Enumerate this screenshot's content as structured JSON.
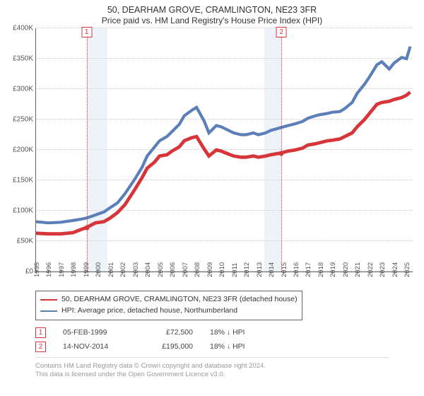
{
  "title": "50, DEARHAM GROVE, CRAMLINGTON, NE23 3FR",
  "subtitle": "Price paid vs. HM Land Registry's House Price Index (HPI)",
  "chart": {
    "type": "line",
    "background": "#ffffff",
    "grid_color": "#cccccc",
    "axis_color": "#666666",
    "shade_color": "#eef3f9",
    "marker_color": "#d6363a",
    "point_fill": "#d6363a",
    "label_color": "#555555",
    "label_fontsize": 10,
    "y": {
      "min": 0,
      "max": 400000,
      "step": 50000,
      "labels": [
        "£0",
        "£50K",
        "£100K",
        "£150K",
        "£200K",
        "£250K",
        "£300K",
        "£350K",
        "£400K"
      ]
    },
    "x": {
      "min": 1995,
      "max": 2025.5,
      "ticks": [
        1995,
        1996,
        1997,
        1998,
        1999,
        2000,
        2001,
        2002,
        2003,
        2004,
        2005,
        2006,
        2007,
        2008,
        2009,
        2010,
        2011,
        2012,
        2013,
        2014,
        2015,
        2016,
        2017,
        2018,
        2019,
        2020,
        2021,
        2022,
        2023,
        2024,
        2025
      ]
    },
    "markers": [
      {
        "num": "1",
        "x": 1999.1
      },
      {
        "num": "2",
        "x": 2014.87
      }
    ],
    "shaded_ranges": [
      {
        "from": 1999.1,
        "to": 2000.8
      },
      {
        "from": 2013.5,
        "to": 2014.87
      }
    ],
    "points": [
      {
        "x": 1999.1,
        "y": 72500
      },
      {
        "x": 2014.87,
        "y": 195000
      }
    ],
    "series": [
      {
        "name": "50, DEARHAM GROVE, CRAMLINGTON, NE23 3FR (detached house)",
        "color": "#d6363a",
        "width": 1.6,
        "data": [
          [
            1995,
            63000
          ],
          [
            1996,
            62000
          ],
          [
            1997,
            62000
          ],
          [
            1998,
            64000
          ],
          [
            1998.5,
            68000
          ],
          [
            1999.1,
            72500
          ],
          [
            1999.8,
            80000
          ],
          [
            2000.5,
            82000
          ],
          [
            2001,
            88000
          ],
          [
            2001.6,
            97000
          ],
          [
            2002.2,
            110000
          ],
          [
            2003,
            135000
          ],
          [
            2003.6,
            155000
          ],
          [
            2004,
            170000
          ],
          [
            2004.6,
            180000
          ],
          [
            2005,
            190000
          ],
          [
            2005.6,
            192000
          ],
          [
            2006,
            198000
          ],
          [
            2006.6,
            205000
          ],
          [
            2007,
            215000
          ],
          [
            2007.6,
            220000
          ],
          [
            2008,
            222000
          ],
          [
            2008.6,
            202000
          ],
          [
            2009,
            190000
          ],
          [
            2009.6,
            200000
          ],
          [
            2010,
            198000
          ],
          [
            2010.6,
            193000
          ],
          [
            2011,
            190000
          ],
          [
            2011.6,
            188000
          ],
          [
            2012,
            188000
          ],
          [
            2012.6,
            190000
          ],
          [
            2013,
            188000
          ],
          [
            2013.6,
            190000
          ],
          [
            2014,
            192000
          ],
          [
            2014.87,
            195000
          ],
          [
            2015.4,
            198000
          ],
          [
            2016,
            200000
          ],
          [
            2016.6,
            203000
          ],
          [
            2017,
            208000
          ],
          [
            2017.6,
            210000
          ],
          [
            2018,
            212000
          ],
          [
            2018.6,
            215000
          ],
          [
            2019,
            216000
          ],
          [
            2019.6,
            218000
          ],
          [
            2020,
            222000
          ],
          [
            2020.6,
            228000
          ],
          [
            2021,
            238000
          ],
          [
            2021.6,
            250000
          ],
          [
            2022,
            260000
          ],
          [
            2022.6,
            275000
          ],
          [
            2023,
            278000
          ],
          [
            2023.6,
            280000
          ],
          [
            2024,
            283000
          ],
          [
            2024.6,
            286000
          ],
          [
            2025,
            290000
          ],
          [
            2025.3,
            295000
          ]
        ]
      },
      {
        "name": "HPI: Average price, detached house, Northumberland",
        "color": "#5b7fb8",
        "width": 1.4,
        "data": [
          [
            1995,
            82000
          ],
          [
            1996,
            80000
          ],
          [
            1997,
            81000
          ],
          [
            1998,
            84000
          ],
          [
            1998.6,
            86000
          ],
          [
            1999.1,
            88000
          ],
          [
            1999.8,
            93000
          ],
          [
            2000.5,
            98000
          ],
          [
            2001,
            105000
          ],
          [
            2001.6,
            113000
          ],
          [
            2002.2,
            128000
          ],
          [
            2003,
            152000
          ],
          [
            2003.6,
            172000
          ],
          [
            2004,
            190000
          ],
          [
            2004.6,
            205000
          ],
          [
            2005,
            215000
          ],
          [
            2005.6,
            222000
          ],
          [
            2006,
            230000
          ],
          [
            2006.6,
            242000
          ],
          [
            2007,
            256000
          ],
          [
            2007.6,
            265000
          ],
          [
            2008,
            270000
          ],
          [
            2008.6,
            248000
          ],
          [
            2009,
            228000
          ],
          [
            2009.6,
            240000
          ],
          [
            2010,
            238000
          ],
          [
            2010.6,
            232000
          ],
          [
            2011,
            228000
          ],
          [
            2011.6,
            225000
          ],
          [
            2012,
            225000
          ],
          [
            2012.6,
            228000
          ],
          [
            2013,
            225000
          ],
          [
            2013.6,
            228000
          ],
          [
            2014,
            232000
          ],
          [
            2014.87,
            237000
          ],
          [
            2015.4,
            240000
          ],
          [
            2016,
            243000
          ],
          [
            2016.6,
            247000
          ],
          [
            2017,
            252000
          ],
          [
            2017.6,
            256000
          ],
          [
            2018,
            258000
          ],
          [
            2018.6,
            260000
          ],
          [
            2019,
            262000
          ],
          [
            2019.6,
            263000
          ],
          [
            2020,
            268000
          ],
          [
            2020.6,
            278000
          ],
          [
            2021,
            293000
          ],
          [
            2021.6,
            308000
          ],
          [
            2022,
            320000
          ],
          [
            2022.6,
            340000
          ],
          [
            2023,
            345000
          ],
          [
            2023.6,
            333000
          ],
          [
            2024,
            343000
          ],
          [
            2024.6,
            352000
          ],
          [
            2025,
            350000
          ],
          [
            2025.3,
            370000
          ]
        ]
      }
    ]
  },
  "legend": {
    "series1": "50, DEARHAM GROVE, CRAMLINGTON, NE23 3FR (detached house)",
    "series2": "HPI: Average price, detached house, Northumberland"
  },
  "table": {
    "rows": [
      {
        "num": "1",
        "date": "05-FEB-1999",
        "price": "£72,500",
        "pct": "18% ↓ HPI"
      },
      {
        "num": "2",
        "date": "14-NOV-2014",
        "price": "£195,000",
        "pct": "18% ↓ HPI"
      }
    ]
  },
  "footer": {
    "line1": "Contains HM Land Registry data © Crown copyright and database right 2024.",
    "line2": "This data is licensed under the Open Government Licence v3.0."
  }
}
